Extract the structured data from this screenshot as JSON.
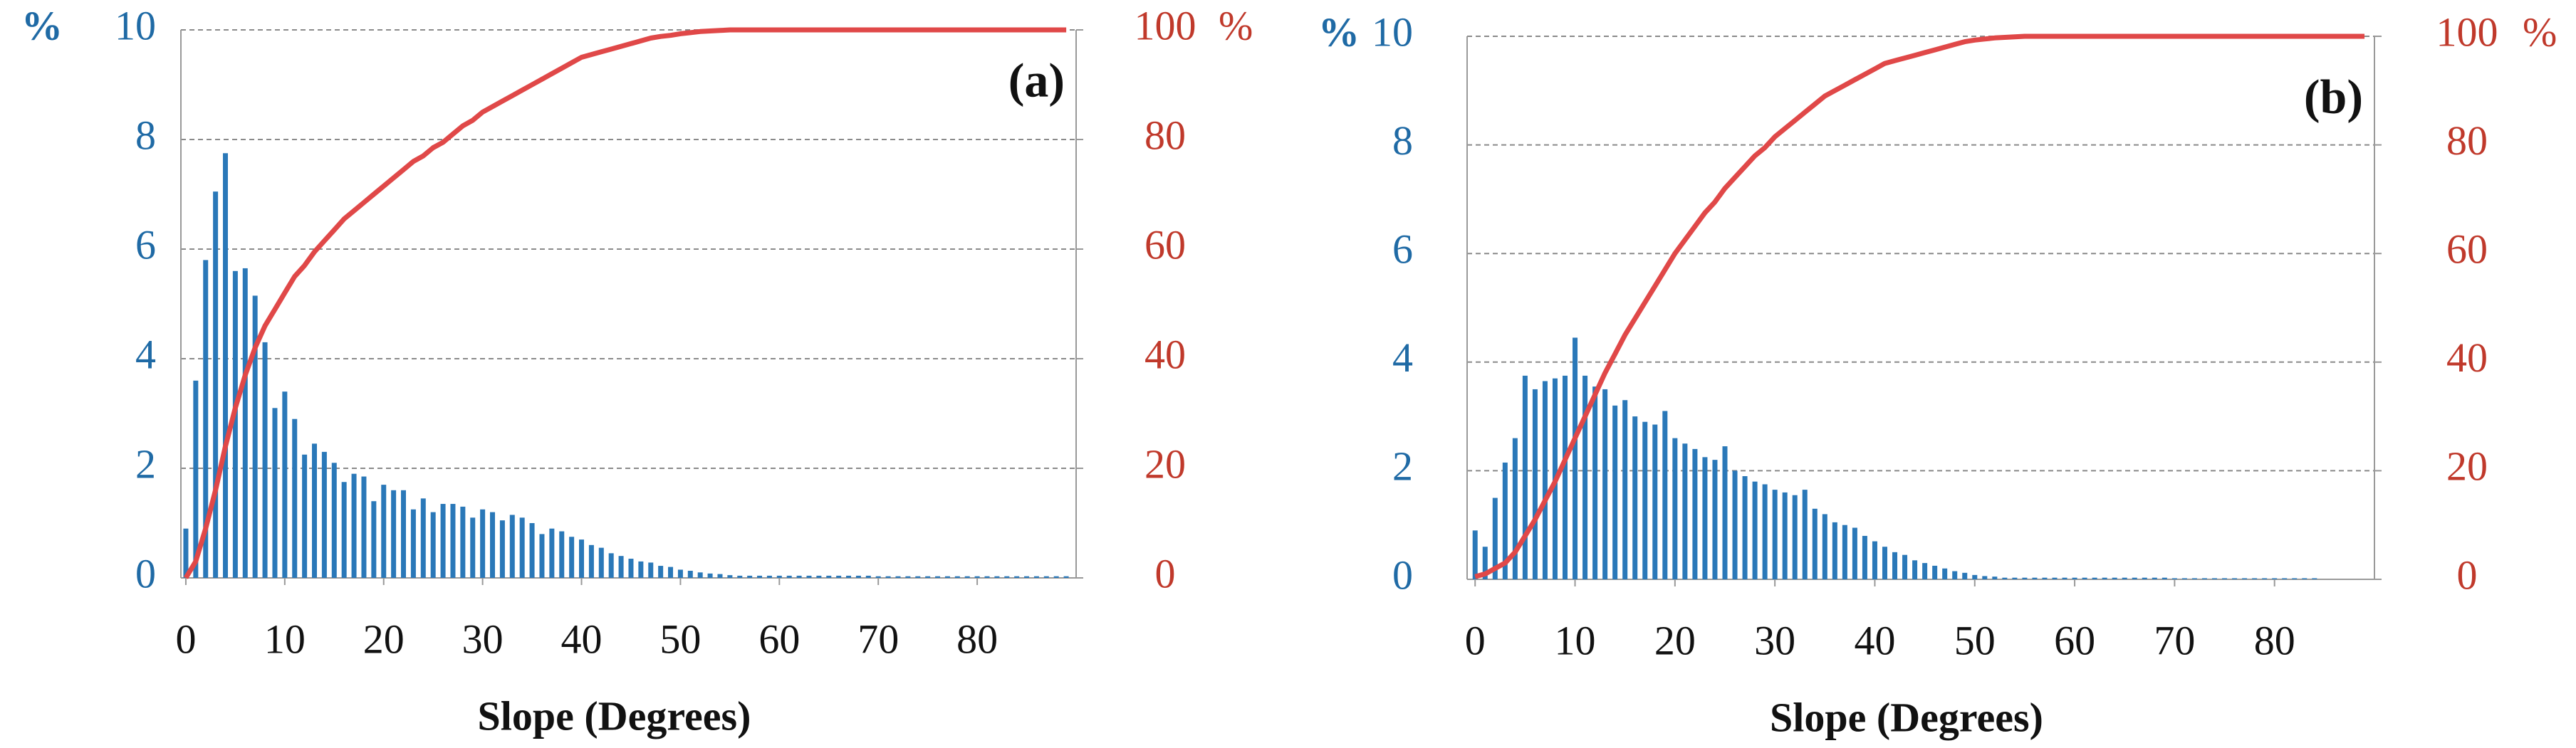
{
  "chart_data": [
    {
      "type": "bar",
      "annotation": "(a)",
      "xlabel": "Slope (Degrees)",
      "ylabel": "%",
      "y2label": "%",
      "x": [
        0,
        1,
        2,
        3,
        4,
        5,
        6,
        7,
        8,
        9,
        10,
        11,
        12,
        13,
        14,
        15,
        16,
        17,
        18,
        19,
        20,
        21,
        22,
        23,
        24,
        25,
        26,
        27,
        28,
        29,
        30,
        31,
        32,
        33,
        34,
        35,
        36,
        37,
        38,
        39,
        40,
        41,
        42,
        43,
        44,
        45,
        46,
        47,
        48,
        49,
        50,
        51,
        52,
        53,
        54,
        55,
        56,
        57,
        58,
        59,
        60,
        61,
        62,
        63,
        64,
        65,
        66,
        67,
        68,
        69,
        70,
        71,
        72,
        73,
        74,
        75,
        76,
        77,
        78,
        79,
        80,
        81,
        82,
        83,
        84,
        85,
        86,
        87,
        88,
        89
      ],
      "xlim": [
        -0.5,
        90
      ],
      "xticks": [
        0,
        10,
        20,
        30,
        40,
        50,
        60,
        70,
        80
      ],
      "ylim": [
        0,
        10
      ],
      "yticks": [
        0,
        2,
        4,
        6,
        8,
        10
      ],
      "y2lim": [
        0,
        100
      ],
      "y2ticks": [
        0,
        20,
        40,
        60,
        80,
        100
      ],
      "grid": true,
      "series": [
        {
          "type": "bar",
          "color": "#2a78b8",
          "values": [
            0.9,
            3.6,
            5.8,
            7.05,
            7.75,
            5.6,
            5.65,
            5.15,
            4.3,
            3.1,
            3.4,
            2.9,
            2.25,
            2.45,
            2.3,
            2.1,
            1.75,
            1.9,
            1.85,
            1.4,
            1.7,
            1.6,
            1.6,
            1.25,
            1.45,
            1.2,
            1.35,
            1.35,
            1.3,
            1.1,
            1.25,
            1.2,
            1.05,
            1.15,
            1.1,
            1.0,
            0.8,
            0.9,
            0.85,
            0.75,
            0.7,
            0.6,
            0.55,
            0.45,
            0.4,
            0.35,
            0.3,
            0.28,
            0.22,
            0.2,
            0.15,
            0.13,
            0.1,
            0.08,
            0.07,
            0.05,
            0.04,
            0.04,
            0.04,
            0.04,
            0.04,
            0.04,
            0.04,
            0.04,
            0.04,
            0.04,
            0.04,
            0.04,
            0.04,
            0.04,
            0.03,
            0.03,
            0.03,
            0.03,
            0.03,
            0.03,
            0.03,
            0.03,
            0.03,
            0.03,
            0.03,
            0.03,
            0.03,
            0.03,
            0.03,
            0.03,
            0.03,
            0.03,
            0.03,
            0.03
          ]
        },
        {
          "type": "line",
          "axis": "y2",
          "color": "#e04848",
          "values": [
            0,
            3,
            9,
            16,
            24,
            31,
            37,
            42,
            46,
            49,
            52,
            55,
            57,
            59.5,
            61.5,
            63.5,
            65.5,
            67,
            68.5,
            70,
            71.5,
            73,
            74.5,
            76,
            77,
            78.5,
            79.5,
            81,
            82.5,
            83.5,
            85,
            86,
            87,
            88,
            89,
            90,
            91,
            92,
            93,
            94,
            95,
            95.5,
            96,
            96.5,
            97,
            97.5,
            98,
            98.5,
            98.8,
            99,
            99.3,
            99.5,
            99.7,
            99.8,
            99.9,
            100,
            100,
            100,
            100,
            100,
            100,
            100,
            100,
            100,
            100,
            100,
            100,
            100,
            100,
            100,
            100,
            100,
            100,
            100,
            100,
            100,
            100,
            100,
            100,
            100,
            100,
            100,
            100,
            100,
            100,
            100,
            100,
            100,
            100,
            100
          ]
        }
      ]
    },
    {
      "type": "bar",
      "annotation": "(b)",
      "xlabel": "Slope (Degrees)",
      "ylabel": "%",
      "y2label": "%",
      "x": [
        0,
        1,
        2,
        3,
        4,
        5,
        6,
        7,
        8,
        9,
        10,
        11,
        12,
        13,
        14,
        15,
        16,
        17,
        18,
        19,
        20,
        21,
        22,
        23,
        24,
        25,
        26,
        27,
        28,
        29,
        30,
        31,
        32,
        33,
        34,
        35,
        36,
        37,
        38,
        39,
        40,
        41,
        42,
        43,
        44,
        45,
        46,
        47,
        48,
        49,
        50,
        51,
        52,
        53,
        54,
        55,
        56,
        57,
        58,
        59,
        60,
        61,
        62,
        63,
        64,
        65,
        66,
        67,
        68,
        69,
        70,
        71,
        72,
        73,
        74,
        75,
        76,
        77,
        78,
        79,
        80,
        81,
        82,
        83,
        84,
        85,
        86,
        87,
        88,
        89
      ],
      "xlim": [
        -0.8,
        90
      ],
      "xticks": [
        0,
        10,
        20,
        30,
        40,
        50,
        60,
        70,
        80
      ],
      "ylim": [
        0,
        10
      ],
      "yticks": [
        0,
        2,
        4,
        6,
        8,
        10
      ],
      "y2lim": [
        0,
        100
      ],
      "y2ticks": [
        0,
        20,
        40,
        60,
        80,
        100
      ],
      "grid": true,
      "series": [
        {
          "type": "bar",
          "color": "#2a78b8",
          "values": [
            0.9,
            0.6,
            1.5,
            2.15,
            2.6,
            3.75,
            3.5,
            3.65,
            3.7,
            3.75,
            4.45,
            3.75,
            3.55,
            3.5,
            3.2,
            3.3,
            3.0,
            2.9,
            2.85,
            3.1,
            2.6,
            2.5,
            2.4,
            2.25,
            2.2,
            2.45,
            2.0,
            1.9,
            1.8,
            1.75,
            1.65,
            1.6,
            1.55,
            1.65,
            1.3,
            1.2,
            1.05,
            1.0,
            0.95,
            0.8,
            0.7,
            0.6,
            0.5,
            0.45,
            0.35,
            0.3,
            0.25,
            0.2,
            0.15,
            0.12,
            0.08,
            0.06,
            0.05,
            0.03,
            0.03,
            0.03,
            0.03,
            0.03,
            0.03,
            0.03,
            0.03,
            0.03,
            0.03,
            0.03,
            0.03,
            0.03,
            0.03,
            0.03,
            0.03,
            0.03,
            0.02,
            0.02,
            0.02,
            0.02,
            0.02,
            0.02,
            0.02,
            0.02,
            0.02,
            0.02,
            0.02,
            0.02,
            0.02,
            0.02,
            0.02,
            0,
            0,
            0,
            0,
            0
          ]
        },
        {
          "type": "line",
          "axis": "y2",
          "color": "#e04848",
          "values": [
            0.5,
            1,
            2,
            3,
            5,
            8,
            11,
            14.5,
            18,
            22,
            26,
            30,
            34,
            38,
            41.5,
            45,
            48,
            51,
            54,
            57,
            60,
            62.5,
            65,
            67.5,
            69.5,
            72,
            74,
            76,
            78,
            79.5,
            81.5,
            83,
            84.5,
            86,
            87.5,
            89,
            90,
            91,
            92,
            93,
            94,
            95,
            95.5,
            96,
            96.5,
            97,
            97.5,
            98,
            98.5,
            99,
            99.3,
            99.5,
            99.7,
            99.8,
            99.9,
            100,
            100,
            100,
            100,
            100,
            100,
            100,
            100,
            100,
            100,
            100,
            100,
            100,
            100,
            100,
            100,
            100,
            100,
            100,
            100,
            100,
            100,
            100,
            100,
            100,
            100,
            100,
            100,
            100,
            100,
            100,
            100,
            100,
            100,
            100
          ]
        }
      ]
    }
  ]
}
